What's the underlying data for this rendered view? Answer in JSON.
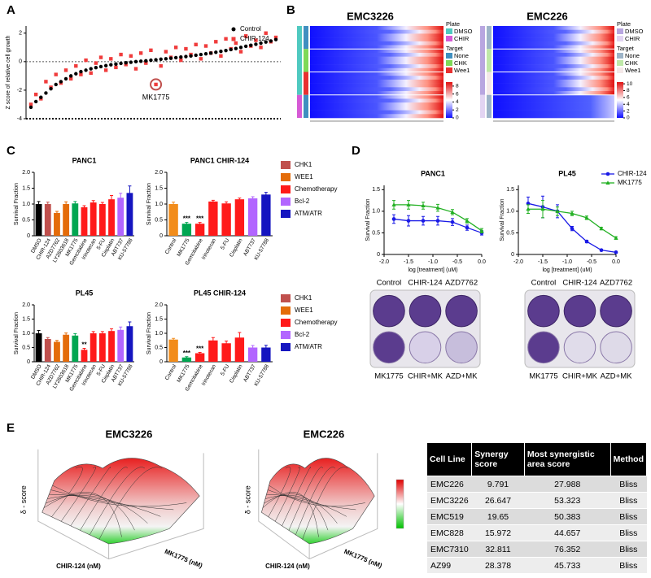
{
  "panel_labels": [
    "A",
    "B",
    "C",
    "D",
    "E"
  ],
  "chart_data": [
    {
      "type": "scatter",
      "ylabel": "Z score of relative cell growth",
      "ylim": [
        -4,
        2.5
      ],
      "yticks": [
        -4,
        -2,
        0,
        2
      ],
      "legend": "top-right",
      "series": [
        {
          "name": "Control",
          "color": "#000000",
          "marker": "circle",
          "values": [
            -3.2,
            -2.8,
            -2.5,
            -2.2,
            -1.9,
            -1.6,
            -1.4,
            -1.2,
            -1.0,
            -0.85,
            -0.7,
            -0.6,
            -0.5,
            -0.42,
            -0.35,
            -0.28,
            -0.22,
            -0.17,
            -0.12,
            -0.08,
            -0.04,
            0,
            0.03,
            0.06,
            0.1,
            0.13,
            0.17,
            0.2,
            0.24,
            0.28,
            0.32,
            0.36,
            0.4,
            0.45,
            0.5,
            0.55,
            0.6,
            0.66,
            0.72,
            0.78,
            0.85,
            0.92,
            1.0,
            1.08,
            1.15,
            1.22,
            1.3,
            1.38,
            1.45,
            1.55
          ]
        },
        {
          "name": "CHIR-124",
          "color": "#f03c3c",
          "marker": "square",
          "values": [
            -3.0,
            -2.3,
            -2.6,
            -1.4,
            -1.8,
            -0.9,
            -1.5,
            -0.6,
            -1.2,
            -0.3,
            -0.9,
            0.1,
            -0.8,
            -0.1,
            0.3,
            -0.6,
            0.2,
            -0.4,
            0.5,
            -0.2,
            0.4,
            -0.5,
            0.6,
            -0.1,
            0.8,
            -1.6,
            -0.3,
            0.7,
            0.3,
            1.0,
            0.1,
            0.9,
            0.5,
            1.2,
            0.2,
            1.1,
            0.6,
            1.4,
            0.4,
            1.6,
            0.9,
            1.3,
            0.7,
            1.8,
            1.1,
            1.5,
            1.0,
            2.0,
            1.4,
            1.7
          ]
        }
      ],
      "annotation": {
        "text": "MK1775",
        "series": 1,
        "point": 25
      }
    },
    {
      "type": "heatmap",
      "title": "EMC3226",
      "plate_legend": {
        "title": "Plate",
        "items": [
          {
            "name": "DMSO",
            "color": "#4fc9c0"
          },
          {
            "name": "CHIR",
            "color": "#d65ad6"
          }
        ]
      },
      "target_legend": {
        "title": "Target",
        "items": [
          {
            "name": "None",
            "color": "#3f8fc0"
          },
          {
            "name": "CHK",
            "color": "#7ed957"
          },
          {
            "name": "Wee1",
            "color": "#e83030"
          }
        ]
      },
      "colorbar_lim": [
        0,
        9
      ],
      "colorbar_ticks": [
        0,
        2,
        4,
        6,
        8
      ]
    },
    {
      "type": "heatmap",
      "title": "EMC226",
      "plate_legend": {
        "title": "Plate",
        "items": [
          {
            "name": "DMSO",
            "color": "#b8a6e0"
          },
          {
            "name": "CHIR",
            "color": "#e2d4f2"
          }
        ]
      },
      "target_legend": {
        "title": "Target",
        "items": [
          {
            "name": "None",
            "color": "#9db4c8"
          },
          {
            "name": "CHK",
            "color": "#bfe8a8"
          },
          {
            "name": "Wee1",
            "color": "#f4e8e8"
          }
        ]
      },
      "colorbar_lim": [
        0,
        10.5
      ],
      "colorbar_ticks": [
        0,
        2,
        4,
        6,
        8,
        10
      ]
    },
    {
      "type": "bar",
      "title": "PANC1",
      "ylabel": "Survival Fraction",
      "ylim": [
        0,
        2
      ],
      "yticks": [
        0,
        0.5,
        {
          "value": 1,
          "label": "1.0"
        },
        1.5,
        {
          "value": 2,
          "label": "2.0"
        }
      ],
      "categories": [
        "DMSO",
        "CHIR-124",
        "AZD7762",
        "LY2603618",
        "MK1775",
        "Gemcitabine",
        "Irinotecan",
        "5-FU",
        "Cisplatin",
        "ABT737",
        "KU-57788"
      ],
      "values": [
        1.0,
        1.0,
        0.72,
        1.0,
        1.02,
        0.9,
        1.05,
        1.0,
        1.15,
        1.2,
        1.35
      ],
      "errors": [
        0.08,
        0.06,
        0.05,
        0.07,
        0.06,
        0.05,
        0.06,
        0.05,
        0.12,
        0.14,
        0.22
      ],
      "colors": [
        "#000000",
        "#c0504d",
        "#e46c0a",
        "#e46c0a",
        "#00a651",
        "#ff1a1a",
        "#ff1a1a",
        "#ff1a1a",
        "#ff1a1a",
        "#b266ff",
        "#1515c0"
      ],
      "annotations": []
    },
    {
      "type": "bar",
      "title": "PANC1  CHIR-124",
      "ylabel": "Survival Fraction",
      "ylim": [
        0,
        2
      ],
      "yticks": [
        0,
        0.5,
        {
          "value": 1,
          "label": "1.0"
        },
        1.5,
        {
          "value": 2,
          "label": "2.0"
        }
      ],
      "categories": [
        "Control",
        "MK1775",
        "Gemcitabine",
        "Irinotecan",
        "5-FU",
        "Cisplatin",
        "ABT737",
        "KU-57788"
      ],
      "values": [
        1.0,
        0.38,
        0.38,
        1.08,
        1.02,
        1.15,
        1.18,
        1.3
      ],
      "errors": [
        0.06,
        0.04,
        0.04,
        0.04,
        0.05,
        0.04,
        0.05,
        0.07
      ],
      "colors": [
        "#f28c1a",
        "#00a651",
        "#ff1a1a",
        "#ff1a1a",
        "#ff1a1a",
        "#ff1a1a",
        "#b266ff",
        "#1515c0"
      ],
      "annotations": [
        {
          "text": "***",
          "category": "MK1775"
        },
        {
          "text": "***",
          "category": "Gemcitabine"
        }
      ]
    },
    {
      "type": "bar",
      "title": "PL45",
      "ylabel": "Survival Fraction",
      "ylim": [
        0,
        2
      ],
      "yticks": [
        0,
        0.5,
        {
          "value": 1,
          "label": "1.0"
        },
        1.5,
        {
          "value": 2,
          "label": "2.0"
        }
      ],
      "categories": [
        "DMSO",
        "CHIR-124",
        "AZD7762",
        "LY2603618",
        "MK1775",
        "Gemcitabine",
        "Irinotecan",
        "5-FU",
        "Cisplatin",
        "ABT737",
        "KU-57788"
      ],
      "values": [
        1.0,
        0.8,
        0.7,
        0.95,
        0.92,
        0.42,
        1.0,
        1.0,
        1.08,
        1.12,
        1.25
      ],
      "errors": [
        0.1,
        0.05,
        0.05,
        0.06,
        0.07,
        0.05,
        0.06,
        0.06,
        0.08,
        0.1,
        0.15
      ],
      "colors": [
        "#000000",
        "#c0504d",
        "#e46c0a",
        "#e46c0a",
        "#00a651",
        "#ff1a1a",
        "#ff1a1a",
        "#ff1a1a",
        "#ff1a1a",
        "#b266ff",
        "#1515c0"
      ],
      "annotations": [
        {
          "text": "**",
          "category": "Gemcitabine"
        }
      ]
    },
    {
      "type": "bar",
      "title": "PL45  CHIR-124",
      "ylabel": "Survival Fraction",
      "ylim": [
        0,
        2
      ],
      "yticks": [
        0,
        0.5,
        {
          "value": 1,
          "label": "1.0"
        },
        1.5,
        {
          "value": 2,
          "label": "2.0"
        }
      ],
      "categories": [
        "Control",
        "MK1775",
        "Gemcitabine",
        "Irinotecan",
        "5-FU",
        "Cisplatin",
        "ABT737",
        "KU-57788"
      ],
      "values": [
        0.78,
        0.15,
        0.3,
        0.75,
        0.65,
        0.85,
        0.5,
        0.5
      ],
      "errors": [
        0.04,
        0.03,
        0.03,
        0.1,
        0.08,
        0.18,
        0.07,
        0.08
      ],
      "colors": [
        "#f28c1a",
        "#00a651",
        "#ff1a1a",
        "#ff1a1a",
        "#ff1a1a",
        "#ff1a1a",
        "#b266ff",
        "#1515c0"
      ],
      "annotations": [
        {
          "text": "***",
          "category": "MK1775"
        },
        {
          "text": "***",
          "category": "Gemcitabine"
        }
      ]
    },
    {
      "type": "line",
      "title": "PANC1",
      "xlabel": "log [treatment] (uM)",
      "ylabel": "Survival Fraction",
      "xlim": [
        -2,
        0
      ],
      "xticks": [
        {
          "value": -2,
          "label": "-2.0"
        },
        -1.5,
        {
          "value": -1,
          "label": "-1.0"
        },
        -0.5,
        {
          "value": 0,
          "label": "0.0"
        }
      ],
      "ylim": [
        0,
        1.6
      ],
      "yticks": [
        0,
        0.5,
        {
          "value": 1,
          "label": "1.0"
        },
        1.5
      ],
      "x": [
        -1.8,
        -1.5,
        -1.2,
        -0.9,
        -0.6,
        -0.3,
        0.0
      ],
      "series": [
        {
          "color": "#1a1ae6",
          "marker": "circle",
          "values": [
            0.82,
            0.78,
            0.78,
            0.78,
            0.75,
            0.62,
            0.5
          ],
          "errors": [
            0.1,
            0.12,
            0.1,
            0.1,
            0.08,
            0.06,
            0.05
          ]
        },
        {
          "color": "#22b022",
          "marker": "triangle",
          "values": [
            1.15,
            1.15,
            1.13,
            1.08,
            0.98,
            0.78,
            0.55
          ],
          "errors": [
            0.1,
            0.1,
            0.08,
            0.08,
            0.06,
            0.05,
            0.05
          ]
        }
      ]
    },
    {
      "type": "line",
      "title": "PL45",
      "xlabel": "log [treatment] (uM)",
      "ylabel": "Survival Fraction",
      "legend": "top-right",
      "xlim": [
        -2,
        0
      ],
      "xticks": [
        {
          "value": -2,
          "label": "-2.0"
        },
        -1.5,
        {
          "value": -1,
          "label": "-1.0"
        },
        -0.5,
        {
          "value": 0,
          "label": "0.0"
        }
      ],
      "ylim": [
        0,
        1.6
      ],
      "yticks": [
        0,
        0.5,
        {
          "value": 1,
          "label": "1.0"
        },
        1.5
      ],
      "x": [
        -1.8,
        -1.5,
        -1.2,
        -0.9,
        -0.6,
        -0.3,
        0.0
      ],
      "series": [
        {
          "name": "CHIR-124",
          "color": "#1a1ae6",
          "marker": "circle",
          "values": [
            1.18,
            1.1,
            1.0,
            0.6,
            0.3,
            0.1,
            0.05
          ],
          "errors": [
            0.15,
            0.25,
            0.15,
            0.05,
            0.03,
            0.02,
            0.02
          ]
        },
        {
          "name": "MK1775",
          "color": "#22b022",
          "marker": "triangle",
          "values": [
            1.05,
            1.05,
            1.0,
            0.95,
            0.85,
            0.6,
            0.38
          ],
          "errors": [
            0.1,
            0.2,
            0.1,
            0.05,
            0.04,
            0.03,
            0.03
          ]
        }
      ]
    },
    {
      "type": "surface",
      "title": "EMC3226",
      "zlabel": "δ - score",
      "xlabel": "CHIR-124 (nM)",
      "ylabel": "MK1775 (nM)"
    },
    {
      "type": "surface",
      "title": "EMC226",
      "zlabel": "δ - score",
      "xlabel": "CHIR-124 (nM)",
      "ylabel": "MK1775 (nM)"
    }
  ],
  "legend_c": [
    {
      "name": "CHK1",
      "color": "#c0504d"
    },
    {
      "name": "WEE1",
      "color": "#e46c0a"
    },
    {
      "name": "Chemotherapy",
      "color": "#ff1a1a"
    },
    {
      "name": "Bcl-2",
      "color": "#b266ff"
    },
    {
      "name": "ATM/ATR",
      "color": "#1515c0"
    }
  ],
  "plates": [
    {
      "top": [
        "Control",
        "CHIR-124",
        "AZD7762"
      ],
      "bottom": [
        "MK1775",
        "CHIR+MK",
        "AZD+MK"
      ]
    },
    {
      "top": [
        "Control",
        "CHIR-124",
        "AZD7762"
      ],
      "bottom": [
        "MK1775",
        "CHIR+MK",
        "AZD+MK"
      ]
    }
  ],
  "table": {
    "header": [
      "Cell Line",
      "Synergy score",
      "Most synergistic area score",
      "Method"
    ],
    "rows": [
      [
        "EMC226",
        9.791,
        27.988,
        "Bliss"
      ],
      [
        "EMC3226",
        26.647,
        53.323,
        "Bliss"
      ],
      [
        "EMC519",
        19.65,
        50.383,
        "Bliss"
      ],
      [
        "EMC828",
        15.972,
        44.657,
        "Bliss"
      ],
      [
        "EMC7310",
        32.811,
        76.352,
        "Bliss"
      ],
      [
        "AZ99",
        28.378,
        45.733,
        "Bliss"
      ]
    ]
  }
}
